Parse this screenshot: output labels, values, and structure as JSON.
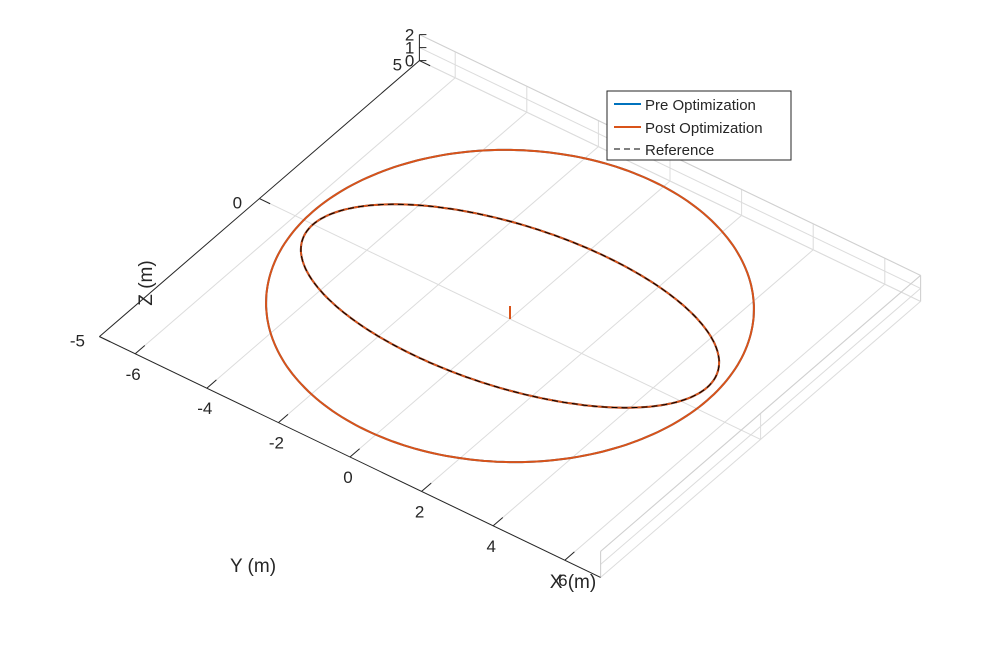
{
  "chart_data": {
    "type": "line",
    "projection": "3d",
    "title": "",
    "xlabel": "X (m)",
    "ylabel": "Y (m)",
    "zlabel": "Z (m)",
    "xlim": [
      -7,
      7
    ],
    "ylim": [
      -5,
      5
    ],
    "zlim": [
      0,
      2
    ],
    "x_ticks": [
      "-6",
      "-4",
      "-2",
      "0",
      "2",
      "4",
      "6"
    ],
    "y_ticks": [
      "-5",
      "0",
      "5"
    ],
    "z_ticks": [
      "0",
      "1",
      "2"
    ],
    "grid": true,
    "legend_location": "top-right",
    "colors": {
      "pre": "#0072BD",
      "post": "#D95319",
      "reference": "#000000"
    },
    "series": [
      {
        "name": "Pre Optimization",
        "style": "solid",
        "description": "takeoff from origin to z=1, then two elliptical loops (one in the x-y plane, one tilted in the x-z plane); hidden beneath post-optimization trajectory"
      },
      {
        "name": "Post Optimization",
        "style": "solid",
        "x": [
          0,
          0,
          5.5,
          0,
          -5.5,
          0,
          5.5,
          0,
          -5.5,
          0
        ],
        "y": [
          0,
          0,
          0,
          4.5,
          0,
          -4.5,
          0,
          2.2,
          0,
          -2.2
        ],
        "z": [
          0,
          1,
          1,
          1,
          1,
          1,
          2,
          1,
          0,
          1
        ]
      },
      {
        "name": "Reference",
        "style": "dashed",
        "x": [
          0,
          5.5,
          0,
          -5.5,
          0
        ],
        "y": [
          0,
          0,
          2.2,
          0,
          -2.2
        ],
        "z": [
          1,
          2,
          1,
          0,
          1
        ]
      }
    ]
  }
}
